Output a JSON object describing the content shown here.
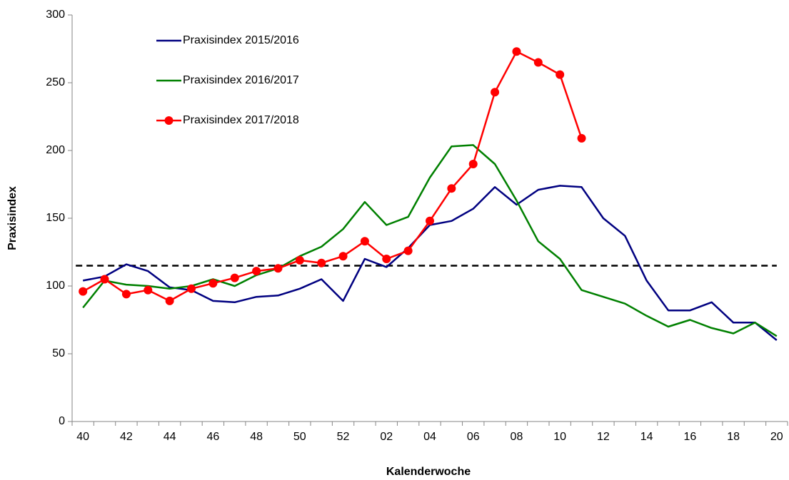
{
  "chart_data": {
    "type": "line",
    "x_label": "Kalenderwoche",
    "y_label": "Praxisindex",
    "categories": [
      "40",
      null,
      "42",
      null,
      "44",
      null,
      "46",
      null,
      "48",
      null,
      "50",
      null,
      "52",
      null,
      "02",
      null,
      "04",
      null,
      "06",
      null,
      "08",
      null,
      "10",
      null,
      "12",
      null,
      "14",
      null,
      "16",
      null,
      "18",
      null,
      "20"
    ],
    "ylim": [
      0,
      300
    ],
    "yticks": [
      0,
      50,
      100,
      150,
      200,
      250,
      300
    ],
    "threshold": 115,
    "series": [
      {
        "name": "Praxisindex 2015/2016",
        "color": "#000080",
        "markers": false,
        "values": [
          104,
          107,
          116,
          111,
          99,
          97,
          89,
          88,
          92,
          93,
          98,
          105,
          89,
          120,
          114,
          128,
          145,
          148,
          157,
          173,
          160,
          171,
          174,
          173,
          150,
          137,
          104,
          82,
          82,
          88,
          73,
          73,
          60
        ]
      },
      {
        "name": "Praxisindex 2016/2017",
        "color": "#008000",
        "markers": false,
        "values": [
          84,
          104,
          101,
          100,
          98,
          100,
          105,
          100,
          108,
          113,
          122,
          129,
          142,
          162,
          145,
          151,
          180,
          203,
          204,
          190,
          163,
          133,
          120,
          97,
          92,
          87,
          78,
          70,
          75,
          69,
          65,
          73,
          63
        ]
      },
      {
        "name": "Praxisindex 2017/2018",
        "color": "#ff0000",
        "markers": true,
        "values": [
          96,
          105,
          94,
          97,
          89,
          98,
          102,
          106,
          111,
          113,
          119,
          117,
          122,
          133,
          120,
          126,
          148,
          172,
          190,
          243,
          273,
          265,
          256,
          209,
          null,
          null,
          null,
          null,
          null,
          null,
          null,
          null,
          null
        ]
      }
    ]
  }
}
